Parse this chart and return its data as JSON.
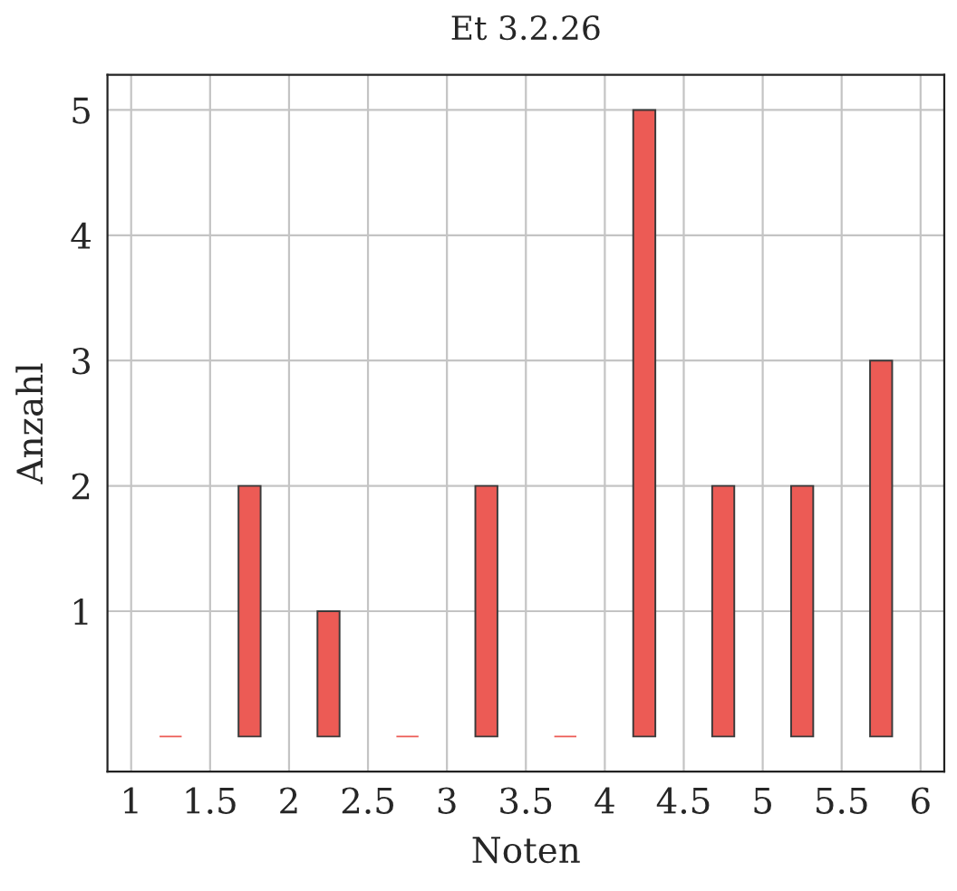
{
  "chart_data": {
    "type": "bar",
    "title": "Et 3.2.26",
    "xlabel": "Noten",
    "ylabel": "Anzahl",
    "x": [
      1.25,
      1.75,
      2.25,
      2.75,
      3.25,
      3.75,
      4.25,
      4.75,
      5.25,
      5.75
    ],
    "values": [
      0,
      2,
      1,
      0,
      2,
      0,
      5,
      2,
      2,
      3
    ],
    "color": "#ec5b55",
    "xlim": [
      0.85,
      6.15
    ],
    "xticks": [
      1,
      1.5,
      2,
      2.5,
      3,
      3.5,
      4,
      4.5,
      5,
      5.5,
      6
    ],
    "ylim": [
      -0.28,
      5.28
    ],
    "yticks": [
      1,
      2,
      3,
      4,
      5
    ],
    "grid": true
  }
}
